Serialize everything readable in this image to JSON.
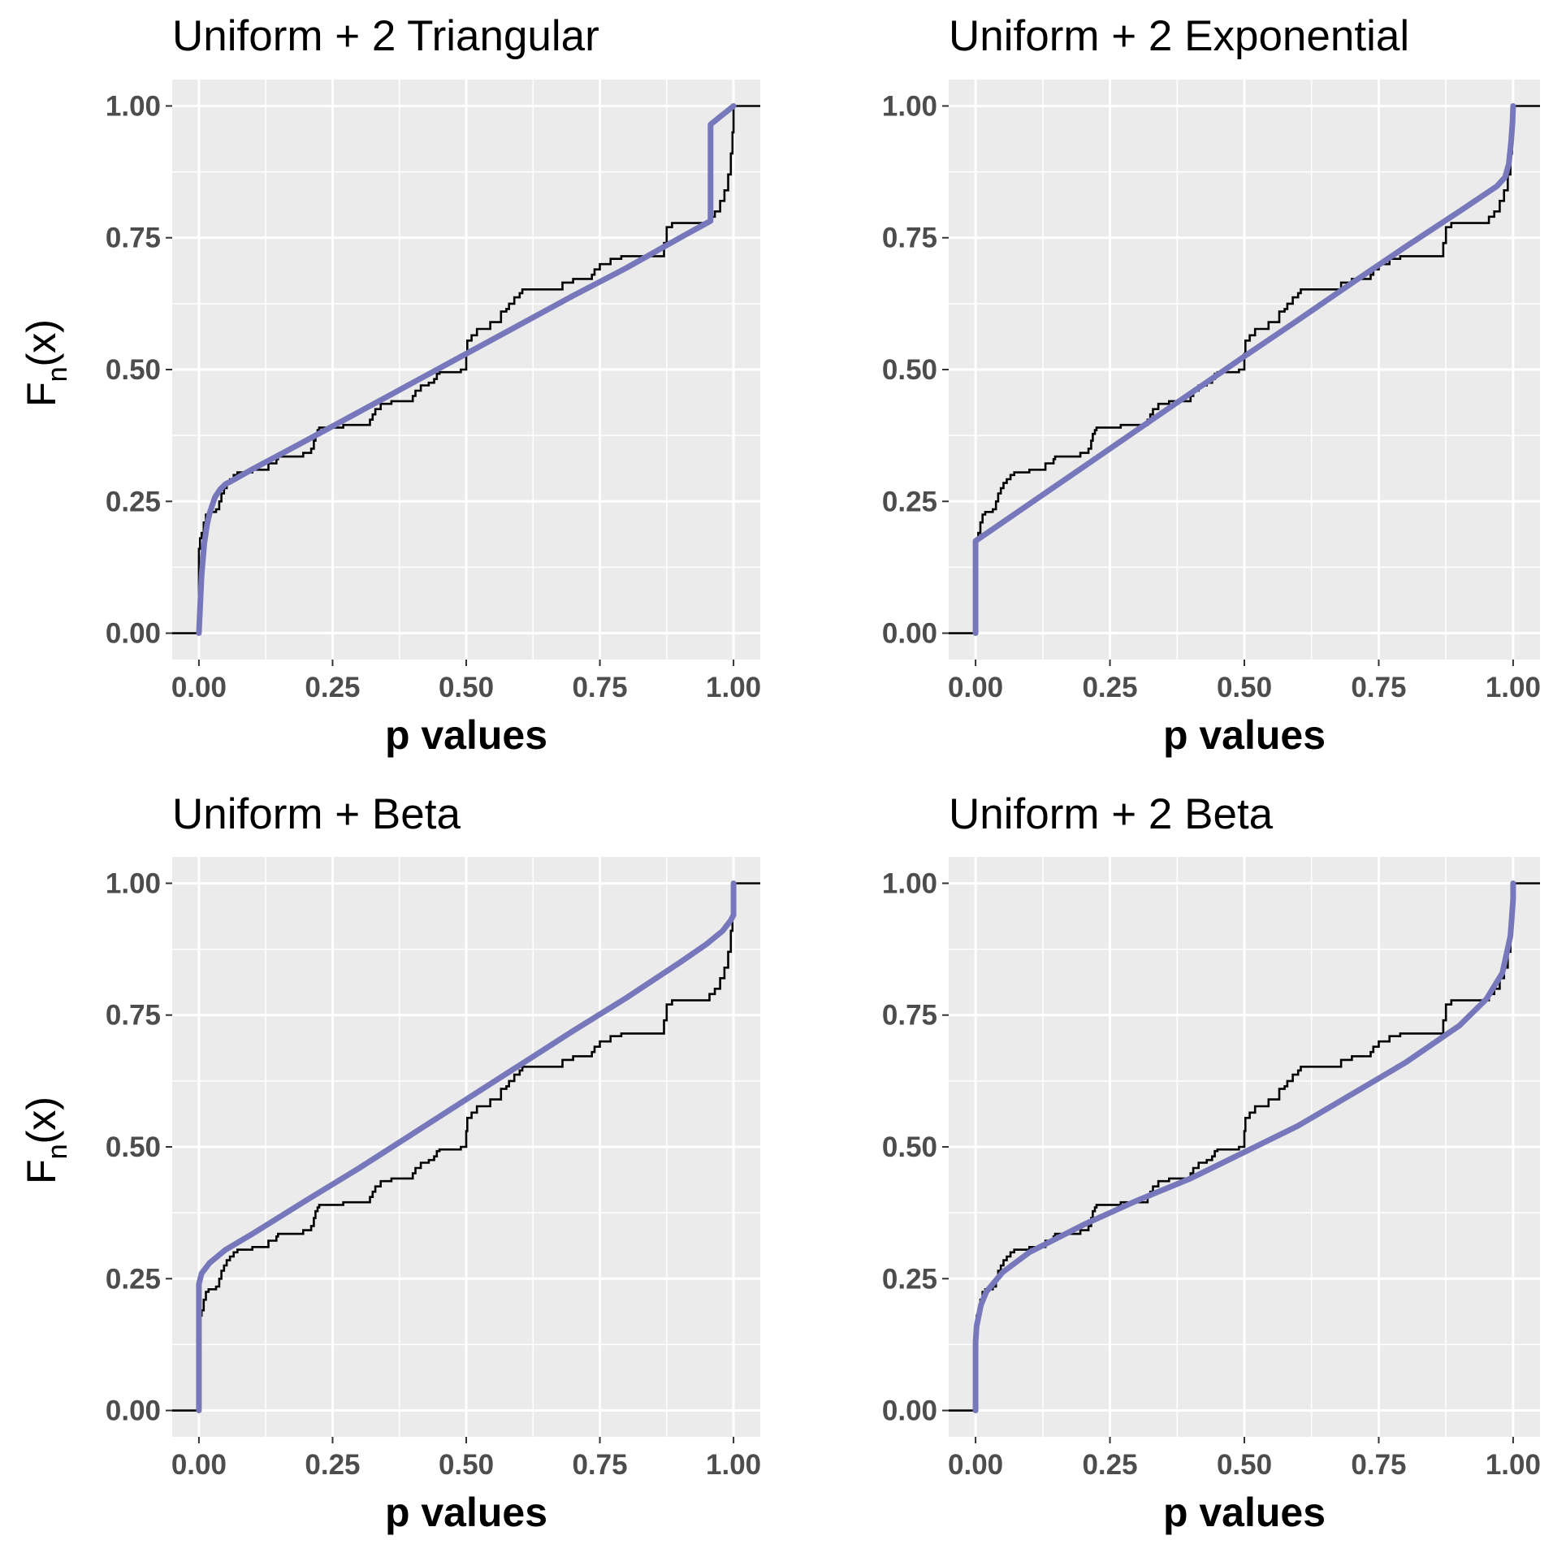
{
  "colors": {
    "panel_background": "#ebebeb",
    "grid": "#ffffff",
    "ecdf_line": "#000000",
    "fit_line": "#7777bb",
    "tick_label": "#4d4d4d",
    "tick_mark": "#333333"
  },
  "ecdf_points": [
    [
      0.0,
      0.0
    ],
    [
      0.0,
      0.16
    ],
    [
      0.002,
      0.18
    ],
    [
      0.005,
      0.19
    ],
    [
      0.009,
      0.21
    ],
    [
      0.013,
      0.225
    ],
    [
      0.018,
      0.23
    ],
    [
      0.032,
      0.235
    ],
    [
      0.038,
      0.25
    ],
    [
      0.042,
      0.265
    ],
    [
      0.047,
      0.275
    ],
    [
      0.052,
      0.285
    ],
    [
      0.058,
      0.292
    ],
    [
      0.065,
      0.3
    ],
    [
      0.072,
      0.305
    ],
    [
      0.1,
      0.31
    ],
    [
      0.13,
      0.322
    ],
    [
      0.145,
      0.33
    ],
    [
      0.148,
      0.335
    ],
    [
      0.195,
      0.342
    ],
    [
      0.21,
      0.35
    ],
    [
      0.215,
      0.365
    ],
    [
      0.218,
      0.378
    ],
    [
      0.222,
      0.385
    ],
    [
      0.225,
      0.39
    ],
    [
      0.27,
      0.395
    ],
    [
      0.32,
      0.405
    ],
    [
      0.325,
      0.415
    ],
    [
      0.33,
      0.425
    ],
    [
      0.34,
      0.435
    ],
    [
      0.36,
      0.44
    ],
    [
      0.4,
      0.45
    ],
    [
      0.405,
      0.46
    ],
    [
      0.415,
      0.47
    ],
    [
      0.43,
      0.475
    ],
    [
      0.44,
      0.482
    ],
    [
      0.445,
      0.492
    ],
    [
      0.45,
      0.495
    ],
    [
      0.49,
      0.5
    ],
    [
      0.5,
      0.53
    ],
    [
      0.502,
      0.555
    ],
    [
      0.51,
      0.565
    ],
    [
      0.52,
      0.577
    ],
    [
      0.545,
      0.59
    ],
    [
      0.565,
      0.61
    ],
    [
      0.575,
      0.615
    ],
    [
      0.58,
      0.625
    ],
    [
      0.59,
      0.637
    ],
    [
      0.6,
      0.645
    ],
    [
      0.605,
      0.652
    ],
    [
      0.68,
      0.665
    ],
    [
      0.7,
      0.672
    ],
    [
      0.735,
      0.68
    ],
    [
      0.74,
      0.69
    ],
    [
      0.75,
      0.7
    ],
    [
      0.77,
      0.71
    ],
    [
      0.79,
      0.715
    ],
    [
      0.87,
      0.74
    ],
    [
      0.875,
      0.77
    ],
    [
      0.885,
      0.778
    ],
    [
      0.955,
      0.79
    ],
    [
      0.965,
      0.8
    ],
    [
      0.975,
      0.82
    ],
    [
      0.983,
      0.84
    ],
    [
      0.99,
      0.87
    ],
    [
      0.995,
      0.91
    ],
    [
      0.998,
      0.95
    ],
    [
      1.0,
      1.0
    ],
    [
      1.05,
      1.0
    ]
  ],
  "chart_data": [
    {
      "type": "line",
      "title": "Uniform + 2 Triangular",
      "xlabel": "p values",
      "ylabel_main": "F",
      "ylabel_sub": "n",
      "ylabel_suffix": "(x)",
      "xlim": [
        -0.05,
        1.05
      ],
      "ylim": [
        -0.05,
        1.05
      ],
      "x_ticks": [
        0.0,
        0.25,
        0.5,
        0.75,
        1.0
      ],
      "x_tick_labels": [
        "0.00",
        "0.25",
        "0.50",
        "0.75",
        "1.00"
      ],
      "y_ticks": [
        0.0,
        0.25,
        0.5,
        0.75,
        1.0
      ],
      "y_tick_labels": [
        "0.00",
        "0.25",
        "0.50",
        "0.75",
        "1.00"
      ],
      "grid": true,
      "fit_curve": [
        [
          0.0,
          0.0
        ],
        [
          0.005,
          0.11
        ],
        [
          0.01,
          0.17
        ],
        [
          0.015,
          0.205
        ],
        [
          0.02,
          0.228
        ],
        [
          0.03,
          0.258
        ],
        [
          0.04,
          0.273
        ],
        [
          0.05,
          0.283
        ],
        [
          0.06,
          0.288
        ],
        [
          0.1,
          0.311
        ],
        [
          0.2,
          0.365
        ],
        [
          0.3,
          0.42
        ],
        [
          0.4,
          0.475
        ],
        [
          0.5,
          0.53
        ],
        [
          0.6,
          0.585
        ],
        [
          0.7,
          0.64
        ],
        [
          0.8,
          0.693
        ],
        [
          0.9,
          0.75
        ],
        [
          0.957,
          0.782
        ],
        [
          0.957,
          0.965
        ],
        [
          1.0,
          1.0
        ]
      ]
    },
    {
      "type": "line",
      "title": "Uniform + 2 Exponential",
      "xlabel": "p values",
      "ylabel_main": "F",
      "ylabel_sub": "n",
      "ylabel_suffix": "(x)",
      "xlim": [
        -0.05,
        1.05
      ],
      "ylim": [
        -0.05,
        1.05
      ],
      "x_ticks": [
        0.0,
        0.25,
        0.5,
        0.75,
        1.0
      ],
      "x_tick_labels": [
        "0.00",
        "0.25",
        "0.50",
        "0.75",
        "1.00"
      ],
      "y_ticks": [
        0.0,
        0.25,
        0.5,
        0.75,
        1.0
      ],
      "y_tick_labels": [
        "0.00",
        "0.25",
        "0.50",
        "0.75",
        "1.00"
      ],
      "grid": true,
      "fit_curve": [
        [
          0.0,
          0.0
        ],
        [
          0.0,
          0.175
        ],
        [
          0.1,
          0.245
        ],
        [
          0.2,
          0.315
        ],
        [
          0.3,
          0.385
        ],
        [
          0.4,
          0.455
        ],
        [
          0.5,
          0.525
        ],
        [
          0.6,
          0.594
        ],
        [
          0.7,
          0.664
        ],
        [
          0.8,
          0.733
        ],
        [
          0.9,
          0.8
        ],
        [
          0.97,
          0.848
        ],
        [
          0.985,
          0.865
        ],
        [
          0.992,
          0.89
        ],
        [
          0.996,
          0.93
        ],
        [
          0.999,
          0.97
        ],
        [
          1.0,
          1.0
        ]
      ]
    },
    {
      "type": "line",
      "title": "Uniform + Beta",
      "xlabel": "p values",
      "ylabel_main": "F",
      "ylabel_sub": "n",
      "ylabel_suffix": "(x)",
      "xlim": [
        -0.05,
        1.05
      ],
      "ylim": [
        -0.05,
        1.05
      ],
      "x_ticks": [
        0.0,
        0.25,
        0.5,
        0.75,
        1.0
      ],
      "x_tick_labels": [
        "0.00",
        "0.25",
        "0.50",
        "0.75",
        "1.00"
      ],
      "y_ticks": [
        0.0,
        0.25,
        0.5,
        0.75,
        1.0
      ],
      "y_tick_labels": [
        "0.00",
        "0.25",
        "0.50",
        "0.75",
        "1.00"
      ],
      "grid": true,
      "fit_curve": [
        [
          0.0,
          0.0
        ],
        [
          0.0,
          0.24
        ],
        [
          0.005,
          0.26
        ],
        [
          0.02,
          0.28
        ],
        [
          0.05,
          0.305
        ],
        [
          0.1,
          0.335
        ],
        [
          0.2,
          0.398
        ],
        [
          0.3,
          0.46
        ],
        [
          0.4,
          0.525
        ],
        [
          0.5,
          0.59
        ],
        [
          0.6,
          0.655
        ],
        [
          0.7,
          0.72
        ],
        [
          0.8,
          0.783
        ],
        [
          0.9,
          0.85
        ],
        [
          0.95,
          0.885
        ],
        [
          0.98,
          0.91
        ],
        [
          0.995,
          0.93
        ],
        [
          1.0,
          0.94
        ],
        [
          1.0,
          1.0
        ]
      ]
    },
    {
      "type": "line",
      "title": "Uniform + 2 Beta",
      "xlabel": "p values",
      "ylabel_main": "F",
      "ylabel_sub": "n",
      "ylabel_suffix": "(x)",
      "xlim": [
        -0.05,
        1.05
      ],
      "ylim": [
        -0.05,
        1.05
      ],
      "x_ticks": [
        0.0,
        0.25,
        0.5,
        0.75,
        1.0
      ],
      "x_tick_labels": [
        "0.00",
        "0.25",
        "0.50",
        "0.75",
        "1.00"
      ],
      "y_ticks": [
        0.0,
        0.25,
        0.5,
        0.75,
        1.0
      ],
      "y_tick_labels": [
        "0.00",
        "0.25",
        "0.50",
        "0.75",
        "1.00"
      ],
      "grid": true,
      "fit_curve": [
        [
          0.0,
          0.0
        ],
        [
          0.0,
          0.13
        ],
        [
          0.002,
          0.16
        ],
        [
          0.01,
          0.2
        ],
        [
          0.02,
          0.225
        ],
        [
          0.05,
          0.262
        ],
        [
          0.1,
          0.3
        ],
        [
          0.2,
          0.352
        ],
        [
          0.3,
          0.398
        ],
        [
          0.4,
          0.44
        ],
        [
          0.5,
          0.49
        ],
        [
          0.6,
          0.54
        ],
        [
          0.7,
          0.6
        ],
        [
          0.8,
          0.66
        ],
        [
          0.9,
          0.73
        ],
        [
          0.95,
          0.78
        ],
        [
          0.98,
          0.83
        ],
        [
          0.995,
          0.9
        ],
        [
          1.0,
          0.97
        ],
        [
          1.0,
          1.0
        ]
      ]
    }
  ]
}
